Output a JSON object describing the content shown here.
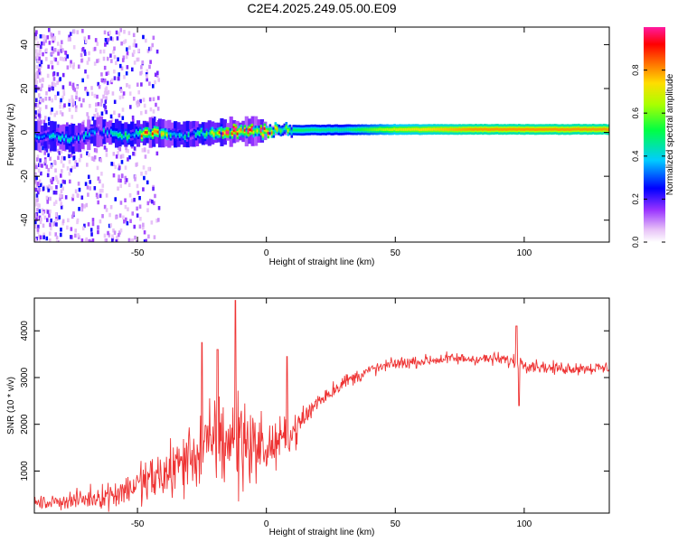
{
  "title": "C2E4.2025.249.05.00.E09",
  "chart_data": [
    {
      "type": "heatmap",
      "title": "C2E4.2025.249.05.00.E09",
      "xlabel": "Height of straight line (km)",
      "ylabel": "Frequency (Hz)",
      "xlim": [
        -90,
        133
      ],
      "ylim": [
        -50,
        48
      ],
      "x_ticks": [
        -50,
        0,
        50,
        100
      ],
      "y_ticks": [
        -40,
        -20,
        0,
        20,
        40
      ],
      "ridge": [
        {
          "x": -85,
          "y": -1.5,
          "amp": 0.35
        },
        {
          "x": -75,
          "y": -3.0,
          "amp": 0.4
        },
        {
          "x": -65,
          "y": 0.5,
          "amp": 0.35
        },
        {
          "x": -55,
          "y": -1.0,
          "amp": 0.45
        },
        {
          "x": -45,
          "y": 0.0,
          "amp": 0.85
        },
        {
          "x": -35,
          "y": -1.0,
          "amp": 0.4
        },
        {
          "x": -25,
          "y": -0.5,
          "amp": 0.45
        },
        {
          "x": -15,
          "y": 0.3,
          "amp": 0.9
        },
        {
          "x": -5,
          "y": 0.6,
          "amp": 0.95
        },
        {
          "x": 10,
          "y": 1.0,
          "amp": 0.5
        },
        {
          "x": 30,
          "y": 1.2,
          "amp": 0.45
        },
        {
          "x": 50,
          "y": 1.3,
          "amp": 0.7
        },
        {
          "x": 80,
          "y": 1.4,
          "amp": 0.8
        },
        {
          "x": 110,
          "y": 1.4,
          "amp": 0.8
        },
        {
          "x": 133,
          "y": 1.4,
          "amp": 0.8
        }
      ],
      "colorbar": {
        "label": "Normalized spectral amplitude",
        "ticks": [
          0.0,
          0.2,
          0.4,
          0.6,
          0.8
        ],
        "range": [
          0,
          1
        ]
      }
    },
    {
      "type": "line",
      "xlabel": "Height of straight line (km)",
      "ylabel": "SNR (10 * v/v)",
      "xlim": [
        -90,
        133
      ],
      "ylim": [
        100,
        4700
      ],
      "x_ticks": [
        -50,
        0,
        50,
        100
      ],
      "y_ticks": [
        1000,
        2000,
        3000,
        4000
      ],
      "series": [
        {
          "name": "SNR",
          "color": "#ee3333",
          "envelope_x": [
            -90,
            -80,
            -70,
            -60,
            -50,
            -40,
            -30,
            -20,
            -10,
            0,
            10,
            20,
            30,
            40,
            50,
            60,
            70,
            80,
            90,
            100,
            110,
            120,
            133
          ],
          "envelope_y": [
            300,
            350,
            400,
            500,
            700,
            900,
            1300,
            1600,
            1700,
            1450,
            1800,
            2500,
            2900,
            3150,
            3300,
            3350,
            3400,
            3400,
            3400,
            3300,
            3200,
            3200,
            3200
          ],
          "noise": [
            120,
            150,
            200,
            280,
            400,
            600,
            700,
            900,
            1100,
            500,
            350,
            200,
            150,
            130,
            120,
            120,
            120,
            120,
            120,
            150,
            120,
            120,
            120
          ],
          "spikes": [
            {
              "x": -25,
              "y": 3750
            },
            {
              "x": -19,
              "y": 3600
            },
            {
              "x": -12,
              "y": 4650
            },
            {
              "x": 8,
              "y": 3450
            },
            {
              "x": 97,
              "y": 4100
            },
            {
              "x": 98,
              "y": 2400
            }
          ]
        }
      ]
    }
  ]
}
